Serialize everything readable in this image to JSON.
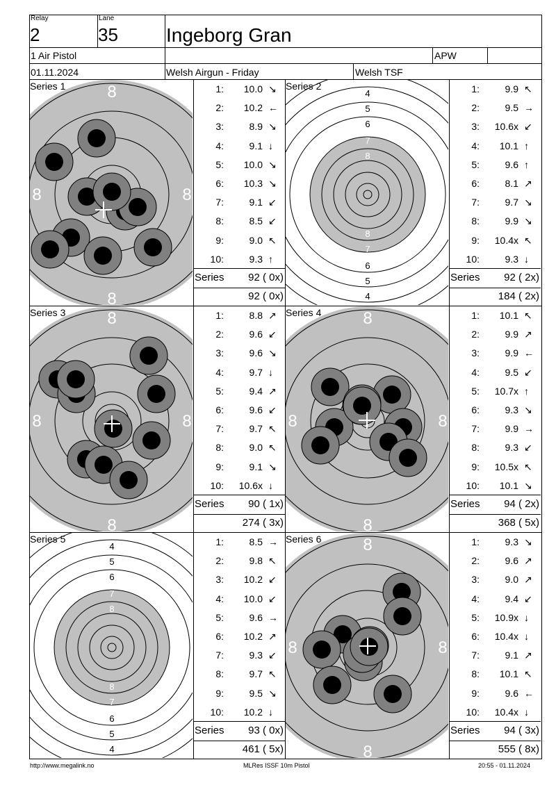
{
  "header": {
    "relay_label": "Relay",
    "relay_value": "2",
    "lane_label": "Lane",
    "lane_value": "35",
    "shooter_name": "Ingeborg Gran",
    "discipline": "1 Air Pistol",
    "class_code": "APW",
    "date": "01.11.2024",
    "competition": "Welsh Airgun - Friday",
    "club": "Welsh TSF"
  },
  "series": [
    {
      "title": "Series 1",
      "zoom": "high",
      "shots": [
        {
          "n": "1:",
          "v": "10.0",
          "dir": "se"
        },
        {
          "n": "2:",
          "v": "10.2",
          "dir": "w"
        },
        {
          "n": "3:",
          "v": "8.9",
          "dir": "se"
        },
        {
          "n": "4:",
          "v": "9.1",
          "dir": "s"
        },
        {
          "n": "5:",
          "v": "10.0",
          "dir": "se"
        },
        {
          "n": "6:",
          "v": "10.3",
          "dir": "se"
        },
        {
          "n": "7:",
          "v": "9.1",
          "dir": "sw"
        },
        {
          "n": "8:",
          "v": "8.5",
          "dir": "sw"
        },
        {
          "n": "9:",
          "v": "9.0",
          "dir": "nw"
        },
        {
          "n": "10:",
          "v": "9.3",
          "dir": "n"
        }
      ],
      "series_label": "Series",
      "series_total": "92 ( 0x)",
      "running_total": "92 ( 0x)"
    },
    {
      "title": "Series 2",
      "zoom": "low",
      "shots": [
        {
          "n": "1:",
          "v": "9.9",
          "dir": "nw"
        },
        {
          "n": "2:",
          "v": "9.5",
          "dir": "e"
        },
        {
          "n": "3:",
          "v": "10.6x",
          "dir": "sw"
        },
        {
          "n": "4:",
          "v": "10.1",
          "dir": "n"
        },
        {
          "n": "5:",
          "v": "9.6",
          "dir": "n"
        },
        {
          "n": "6:",
          "v": "8.1",
          "dir": "ne"
        },
        {
          "n": "7:",
          "v": "9.7",
          "dir": "se"
        },
        {
          "n": "8:",
          "v": "9.9",
          "dir": "se"
        },
        {
          "n": "9:",
          "v": "10.4x",
          "dir": "nw"
        },
        {
          "n": "10:",
          "v": "9.3",
          "dir": "s"
        }
      ],
      "series_label": "Series",
      "series_total": "92 ( 2x)",
      "running_total": "184 ( 2x)"
    },
    {
      "title": "Series 3",
      "zoom": "high",
      "shots": [
        {
          "n": "1:",
          "v": "8.8",
          "dir": "ne"
        },
        {
          "n": "2:",
          "v": "9.6",
          "dir": "sw"
        },
        {
          "n": "3:",
          "v": "9.6",
          "dir": "se"
        },
        {
          "n": "4:",
          "v": "9.7",
          "dir": "s"
        },
        {
          "n": "5:",
          "v": "9.4",
          "dir": "ne"
        },
        {
          "n": "6:",
          "v": "9.6",
          "dir": "sw"
        },
        {
          "n": "7:",
          "v": "9.7",
          "dir": "nw"
        },
        {
          "n": "8:",
          "v": "9.0",
          "dir": "nw"
        },
        {
          "n": "9:",
          "v": "9.1",
          "dir": "se"
        },
        {
          "n": "10:",
          "v": "10.6x",
          "dir": "s"
        }
      ],
      "series_label": "Series",
      "series_total": "90 ( 1x)",
      "running_total": "274 ( 3x)"
    },
    {
      "title": "Series 4",
      "zoom": "high",
      "shots": [
        {
          "n": "1:",
          "v": "10.1",
          "dir": "nw"
        },
        {
          "n": "2:",
          "v": "9.9",
          "dir": "ne"
        },
        {
          "n": "3:",
          "v": "9.9",
          "dir": "w"
        },
        {
          "n": "4:",
          "v": "9.5",
          "dir": "sw"
        },
        {
          "n": "5:",
          "v": "10.7x",
          "dir": "n"
        },
        {
          "n": "6:",
          "v": "9.3",
          "dir": "se"
        },
        {
          "n": "7:",
          "v": "9.9",
          "dir": "e"
        },
        {
          "n": "8:",
          "v": "9.3",
          "dir": "sw"
        },
        {
          "n": "9:",
          "v": "10.5x",
          "dir": "nw"
        },
        {
          "n": "10:",
          "v": "10.1",
          "dir": "se"
        }
      ],
      "series_label": "Series",
      "series_total": "94 ( 2x)",
      "running_total": "368 ( 5x)"
    },
    {
      "title": "Series 5",
      "zoom": "low",
      "shots": [
        {
          "n": "1:",
          "v": "8.5",
          "dir": "e"
        },
        {
          "n": "2:",
          "v": "9.8",
          "dir": "nw"
        },
        {
          "n": "3:",
          "v": "10.2",
          "dir": "sw"
        },
        {
          "n": "4:",
          "v": "10.0",
          "dir": "sw"
        },
        {
          "n": "5:",
          "v": "9.6",
          "dir": "e"
        },
        {
          "n": "6:",
          "v": "10.2",
          "dir": "ne"
        },
        {
          "n": "7:",
          "v": "9.3",
          "dir": "sw"
        },
        {
          "n": "8:",
          "v": "9.7",
          "dir": "nw"
        },
        {
          "n": "9:",
          "v": "9.5",
          "dir": "se"
        },
        {
          "n": "10:",
          "v": "10.2",
          "dir": "s"
        }
      ],
      "series_label": "Series",
      "series_total": "93 ( 0x)",
      "running_total": "461 ( 5x)"
    },
    {
      "title": "Series 6",
      "zoom": "high",
      "shots": [
        {
          "n": "1:",
          "v": "9.3",
          "dir": "se"
        },
        {
          "n": "2:",
          "v": "9.6",
          "dir": "ne"
        },
        {
          "n": "3:",
          "v": "9.0",
          "dir": "ne"
        },
        {
          "n": "4:",
          "v": "9.4",
          "dir": "sw"
        },
        {
          "n": "5:",
          "v": "10.9x",
          "dir": "s"
        },
        {
          "n": "6:",
          "v": "10.4x",
          "dir": "s"
        },
        {
          "n": "7:",
          "v": "9.1",
          "dir": "ne"
        },
        {
          "n": "8:",
          "v": "10.1",
          "dir": "nw"
        },
        {
          "n": "9:",
          "v": "9.6",
          "dir": "w"
        },
        {
          "n": "10:",
          "v": "10.4x",
          "dir": "s"
        }
      ],
      "series_label": "Series",
      "series_total": "94 ( 3x)",
      "running_total": "555 ( 8x)"
    }
  ],
  "footer": {
    "url": "http://www.megalink.no",
    "software": "MLRes ISSF 10m Pistol",
    "timestamp": "20:55 - 01.11.2024"
  }
}
